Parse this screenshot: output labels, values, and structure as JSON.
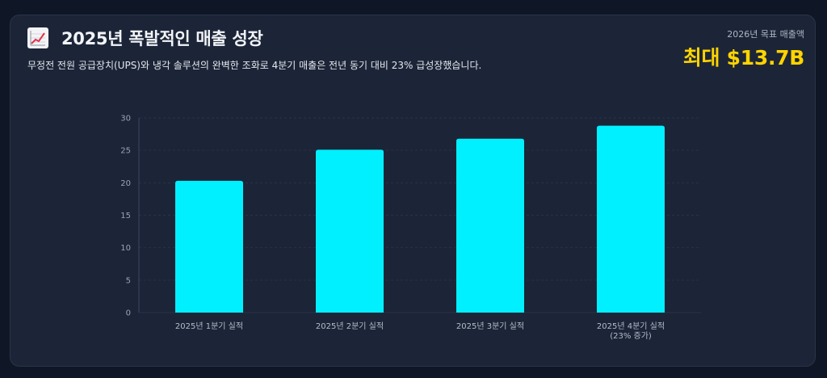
{
  "header": {
    "title": "2025년 폭발적인 매출 성장",
    "subtitle": "무정전 전원 공급장치(UPS)와 냉각 솔루션의 완벽한 조화로 4분기 매출은 전년 동기 대비 23% 급성장했습니다.",
    "icon": "chart-increasing-icon"
  },
  "target": {
    "label": "2026년 목표 매출액",
    "value": "최대 $13.7B",
    "color": "#ffd400"
  },
  "colors": {
    "bar": "#00f0ff",
    "grid": "#27314a"
  },
  "chart_data": {
    "type": "bar",
    "categories": [
      "2025년 1분기 실적",
      "2025년 2분기 실적",
      "2025년 3분기 실적",
      "2025년 4분기 실적\n(23% 증가)"
    ],
    "values": [
      20.3,
      25.1,
      26.8,
      28.8
    ],
    "ylim": [
      0,
      30
    ],
    "yticks": [
      0,
      5,
      10,
      15,
      20,
      25,
      30
    ],
    "grid": true,
    "legend": "none"
  }
}
